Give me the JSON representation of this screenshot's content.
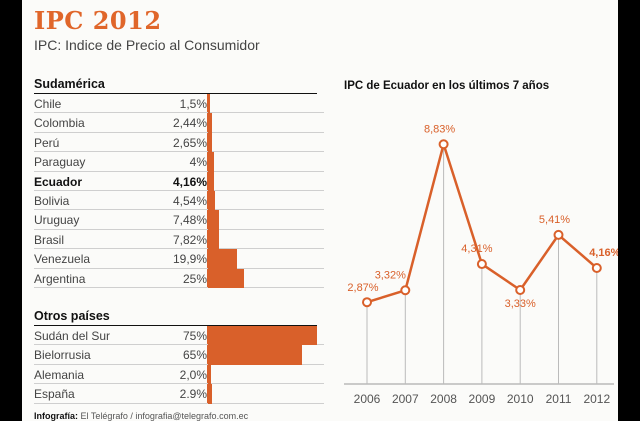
{
  "header": {
    "title": "IPC 2012",
    "subtitle": "IPC: Indice de Precio al Consumidor"
  },
  "sudamerica": {
    "heading": "Sudamérica",
    "rows": [
      {
        "country": "Chile",
        "value_label": "1,5%",
        "value": 1.5
      },
      {
        "country": "Colombia",
        "value_label": "2,44%",
        "value": 2.44
      },
      {
        "country": "Perú",
        "value_label": "2,65%",
        "value": 2.65
      },
      {
        "country": "Paraguay",
        "value_label": "4%",
        "value": 4
      },
      {
        "country": "Ecuador",
        "value_label": "4,16%",
        "value": 4.16,
        "highlight": true
      },
      {
        "country": "Bolivia",
        "value_label": "4,54%",
        "value": 4.54
      },
      {
        "country": "Uruguay",
        "value_label": "7,48%",
        "value": 7.48
      },
      {
        "country": "Brasil",
        "value_label": "7,82%",
        "value": 7.82
      },
      {
        "country": "Venezuela",
        "value_label": "19,9%",
        "value": 19.9
      },
      {
        "country": "Argentina",
        "value_label": "25%",
        "value": 25
      }
    ]
  },
  "otros": {
    "heading": "Otros países",
    "rows": [
      {
        "country": "Sudán del Sur",
        "value_label": "75%",
        "value": 75
      },
      {
        "country": "Bielorrusia",
        "value_label": "65%",
        "value": 65
      },
      {
        "country": "Alemania",
        "value_label": "2,0%",
        "value": 2.0
      },
      {
        "country": "España",
        "value_label": "2.9%",
        "value": 2.9
      }
    ]
  },
  "chart_data": {
    "type": "line",
    "title": "IPC de Ecuador en los últimos 7 años",
    "x": [
      "2006",
      "2007",
      "2008",
      "2009",
      "2010",
      "2011",
      "2012"
    ],
    "values": [
      2.87,
      3.32,
      8.83,
      4.31,
      3.33,
      5.41,
      4.16
    ],
    "labels": [
      "2,87%",
      "3,32%",
      "8,83%",
      "4,31%",
      "3,33%",
      "5,41%",
      "4,16%"
    ],
    "highlight_last": true,
    "color": "#d9602a"
  },
  "footer": {
    "credit_bold": "Infografía:",
    "credit_text": "El Telégrafo / infografia@telegrafo.com.ec"
  }
}
